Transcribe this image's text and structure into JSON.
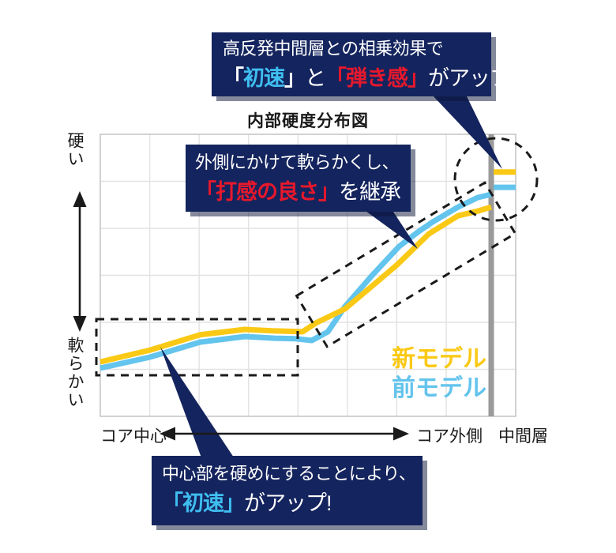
{
  "title": "内部硬度分布図",
  "colors": {
    "navy": "#14245E",
    "red": "#E7182C",
    "cyan": "#3FBEF0",
    "new_model": "#FAC915",
    "old_model": "#63C4ED",
    "divider": "#9A9A9A"
  },
  "y_axis": {
    "top_label": "硬い",
    "bottom_label": "軟らかい"
  },
  "x_axis": {
    "left_label": "コア中心",
    "right_label": "コア外側",
    "outer_label": "中間層"
  },
  "legend": [
    {
      "label": "新モデル",
      "color_key": "new_model"
    },
    {
      "label": "前モデル",
      "color_key": "old_model"
    }
  ],
  "callouts": {
    "top": {
      "line1": "高反発中間層との相乗効果で",
      "line2_runs": [
        {
          "t": "「",
          "s": "w",
          "b": true
        },
        {
          "t": "初速",
          "s": "c",
          "b": true
        },
        {
          "t": "」",
          "s": "w",
          "b": true
        },
        {
          "t": "と",
          "s": "w"
        },
        {
          "t": "「弾き感」",
          "s": "r",
          "b": true
        },
        {
          "t": "がアップ。",
          "s": "w"
        }
      ]
    },
    "middle": {
      "line1": "外側にかけて軟らかくし、",
      "line2_runs": [
        {
          "t": "「打感の良さ」",
          "s": "r",
          "b": true
        },
        {
          "t": "を継承",
          "s": "w"
        }
      ]
    },
    "bottom": {
      "line1": "中心部を硬めにすることにより、",
      "line2_runs": [
        {
          "t": "「初速」",
          "s": "c",
          "b": true
        },
        {
          "t": "がアップ!",
          "s": "w"
        }
      ]
    }
  },
  "chart_data": {
    "type": "line",
    "title": "内部硬度分布図",
    "xlabel_left": "コア中心",
    "xlabel_right": "コア外側",
    "xlabel_outer": "中間層",
    "ylabel_top": "硬い",
    "ylabel_bottom": "軟らかい",
    "x_range": [
      0,
      100
    ],
    "y_range": [
      0,
      100
    ],
    "grid": true,
    "middle_layer_boundary_x": 94.1,
    "legend_position": "inside-bottom-right",
    "series": [
      {
        "name": "新モデル",
        "color_key": "new_model",
        "segments": [
          {
            "region": "core",
            "points": [
              [
                0,
                19.3
              ],
              [
                12,
                23.5
              ],
              [
                24,
                28.9
              ],
              [
                34.8,
                30.8
              ],
              [
                41.4,
                30.3
              ],
              [
                48.7,
                30.0
              ],
              [
                51.9,
                33.1
              ],
              [
                58.9,
                38.1
              ],
              [
                65.2,
                45.9
              ],
              [
                71.5,
                53.8
              ],
              [
                79.1,
                64.7
              ],
              [
                86.1,
                71.1
              ],
              [
                90.9,
                72.8
              ],
              [
                94.1,
                74.2
              ]
            ]
          },
          {
            "region": "middle_layer",
            "points": [
              [
                94.7,
                86.6
              ],
              [
                100,
                86.6
              ]
            ]
          }
        ]
      },
      {
        "name": "前モデル",
        "color_key": "old_model",
        "segments": [
          {
            "region": "core",
            "points": [
              [
                0,
                17.1
              ],
              [
                12,
                21.0
              ],
              [
                24,
                26.3
              ],
              [
                34.8,
                28.3
              ],
              [
                42,
                27.7
              ],
              [
                47.1,
                27.5
              ],
              [
                50.9,
                26.9
              ],
              [
                54.8,
                30.0
              ],
              [
                58.9,
                38.9
              ],
              [
                65.2,
                49.6
              ],
              [
                71.9,
                60.2
              ],
              [
                76.6,
                65.5
              ],
              [
                80,
                68.9
              ],
              [
                86.1,
                74.2
              ],
              [
                90.9,
                77.6
              ],
              [
                94.1,
                78.7
              ]
            ]
          },
          {
            "region": "middle_layer",
            "points": [
              [
                94.7,
                81.2
              ],
              [
                100,
                81.2
              ]
            ]
          }
        ]
      }
    ]
  }
}
